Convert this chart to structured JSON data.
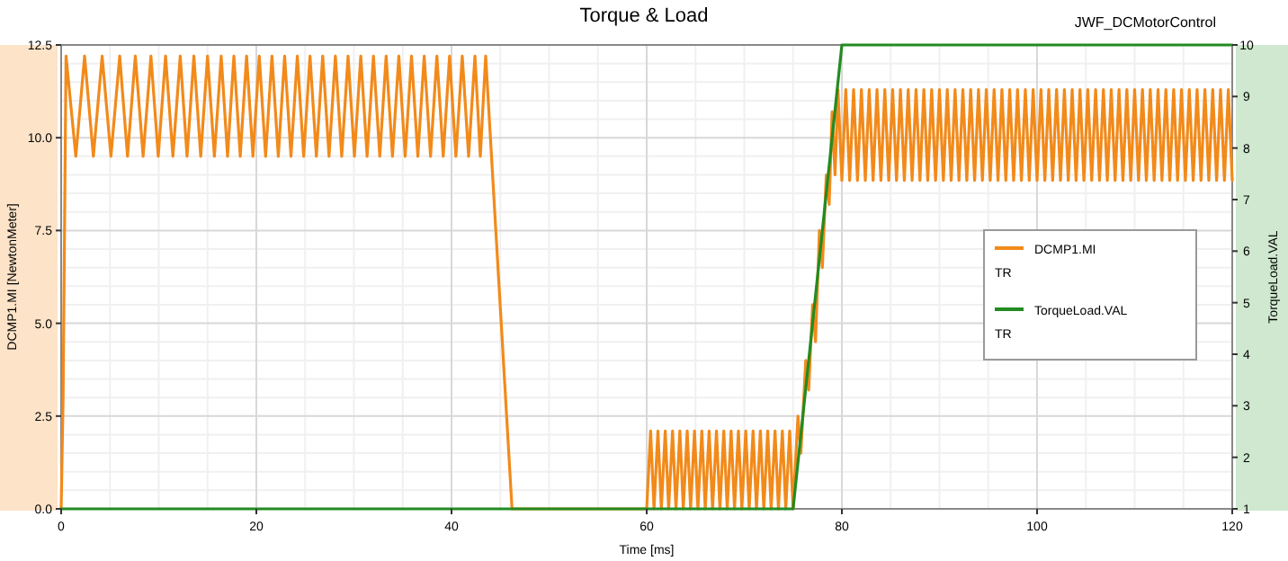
{
  "chart_data": {
    "type": "line",
    "title": "Torque & Load",
    "subtitle": "JWF_DCMotorControl",
    "xlabel": "Time [ms]",
    "ylabel": "DCMP1.MI [NewtonMeter]",
    "y2label": "TorqueLoad.VAL",
    "xlim": [
      0,
      120
    ],
    "xticks": [
      0,
      20,
      40,
      60,
      80,
      100,
      120
    ],
    "ylim": [
      0,
      12.5
    ],
    "yticks": [
      {
        "value": 0,
        "label": "0.0"
      },
      2.5,
      {
        "value": 5,
        "label": "5.0"
      },
      7.5,
      {
        "value": 10,
        "label": "10.0"
      },
      12.5
    ],
    "y2lim": [
      1,
      10
    ],
    "y2ticks": [
      1,
      2,
      3,
      4,
      5,
      6,
      7,
      8,
      9,
      10
    ],
    "grid": true,
    "legend": "right",
    "annotations": [
      "TR",
      "TR"
    ],
    "series": [
      {
        "name": "DCMP1.MI",
        "color": "#f28a1a",
        "x": [
          0,
          0.2,
          0.5,
          1.5,
          2.4,
          3.3,
          4.2,
          5.1,
          6,
          6.8,
          7.6,
          8.4,
          9.2,
          9.95,
          10.7,
          11.45,
          12.2,
          12.9,
          13.6,
          14.3,
          15,
          15.7,
          16.4,
          17.05,
          17.7,
          18.35,
          19,
          19.65,
          20.3,
          20.95,
          21.6,
          22.25,
          22.9,
          23.55,
          24.2,
          24.85,
          25.5,
          26.15,
          26.8,
          27.45,
          28.1,
          28.75,
          29.4,
          30.05,
          30.7,
          31.35,
          32,
          32.65,
          33.3,
          33.95,
          34.6,
          35.25,
          35.9,
          36.55,
          37.2,
          37.85,
          38.5,
          39.15,
          39.8,
          40.45,
          41.1,
          41.75,
          42.4,
          42.95,
          43.5,
          46.2,
          60,
          60.4,
          60.75,
          61.15,
          61.5,
          61.9,
          62.25,
          62.65,
          63,
          63.4,
          63.75,
          64.15,
          64.5,
          64.9,
          65.25,
          65.65,
          66,
          66.4,
          66.75,
          67.15,
          67.5,
          67.9,
          68.25,
          68.65,
          69,
          69.4,
          69.75,
          70.15,
          70.5,
          70.9,
          71.25,
          71.65,
          72,
          72.4,
          72.75,
          73.15,
          73.5,
          73.9,
          74.25,
          74.65,
          75,
          75.5,
          75.8,
          76.3,
          76.6,
          77,
          77.3,
          77.7,
          78,
          78.4,
          78.7,
          79,
          79.3,
          79.6,
          80,
          80.4,
          80.8,
          81.2,
          81.6,
          82,
          82.4,
          82.8,
          83.2,
          83.6,
          84,
          84.4,
          84.8,
          85.2,
          85.6,
          86,
          86.4,
          86.8,
          87.2,
          87.6,
          88,
          88.4,
          88.8,
          89.2,
          89.6,
          90,
          90.4,
          90.8,
          91.2,
          91.6,
          92,
          92.4,
          92.8,
          93.2,
          93.6,
          94,
          94.4,
          94.8,
          95.2,
          95.6,
          96,
          96.4,
          96.8,
          97.2,
          97.6,
          98,
          98.4,
          98.8,
          99.2,
          99.6,
          100,
          100.4,
          100.8,
          101.2,
          101.6,
          102,
          102.4,
          102.8,
          103.2,
          103.6,
          104,
          104.4,
          104.8,
          105.2,
          105.6,
          106,
          106.4,
          106.8,
          107.2,
          107.6,
          108,
          108.4,
          108.8,
          109.2,
          109.6,
          110,
          110.4,
          110.8,
          111.2,
          111.6,
          112,
          112.4,
          112.8,
          113.2,
          113.6,
          114,
          114.4,
          114.8,
          115.2,
          115.6,
          116,
          116.4,
          116.8,
          117.2,
          117.6,
          118,
          118.4,
          118.8,
          119.2,
          119.6,
          120
        ],
        "values": [
          0,
          3,
          12.2,
          9.5,
          12.2,
          9.5,
          12.2,
          9.5,
          12.2,
          9.5,
          12.2,
          9.5,
          12.2,
          9.5,
          12.2,
          9.5,
          12.2,
          9.5,
          12.2,
          9.5,
          12.2,
          9.5,
          12.2,
          9.5,
          12.2,
          9.5,
          12.2,
          9.5,
          12.2,
          9.5,
          12.2,
          9.5,
          12.2,
          9.5,
          12.2,
          9.5,
          12.2,
          9.5,
          12.2,
          9.5,
          12.2,
          9.5,
          12.2,
          9.5,
          12.2,
          9.5,
          12.2,
          9.5,
          12.2,
          9.5,
          12.2,
          9.5,
          12.2,
          9.5,
          12.2,
          9.5,
          12.2,
          9.5,
          12.2,
          9.5,
          12.2,
          9.5,
          12.2,
          9.5,
          12.2,
          0,
          0,
          2.1,
          0,
          2.1,
          0,
          2.1,
          0,
          2.1,
          0,
          2.1,
          0,
          2.1,
          0,
          2.1,
          0,
          2.1,
          0,
          2.1,
          0,
          2.1,
          0,
          2.1,
          0,
          2.1,
          0,
          2.1,
          0,
          2.1,
          0,
          2.1,
          0,
          2.1,
          0,
          2.1,
          0,
          2.1,
          0,
          2.1,
          0,
          2.1,
          0,
          2.5,
          1.5,
          4,
          3.2,
          5.5,
          4.5,
          7.5,
          6.5,
          9,
          8.2,
          10.7,
          9,
          11.3,
          8.85,
          11.3,
          8.85,
          11.3,
          8.85,
          11.3,
          8.85,
          11.3,
          8.85,
          11.3,
          8.85,
          11.3,
          8.85,
          11.3,
          8.85,
          11.3,
          8.85,
          11.3,
          8.85,
          11.3,
          8.85,
          11.3,
          8.85,
          11.3,
          8.85,
          11.3,
          8.85,
          11.3,
          8.85,
          11.3,
          8.85,
          11.3,
          8.85,
          11.3,
          8.85,
          11.3,
          8.85,
          11.3,
          8.85,
          11.3,
          8.85,
          11.3,
          8.85,
          11.3,
          8.85,
          11.3,
          8.85,
          11.3,
          8.85,
          11.3,
          8.85,
          11.3,
          8.85,
          11.3,
          8.85,
          11.3,
          8.85,
          11.3,
          8.85,
          11.3,
          8.85,
          11.3,
          8.85,
          11.3,
          8.85,
          11.3,
          8.85,
          11.3,
          8.85,
          11.3,
          8.85,
          11.3,
          8.85,
          11.3,
          8.85,
          11.3,
          8.85,
          11.3,
          8.85,
          11.3,
          8.85,
          11.3,
          8.85,
          11.3,
          8.85,
          11.3,
          8.85,
          11.3,
          8.85,
          11.3,
          8.85,
          11.3,
          8.85,
          11.3,
          8.85,
          11.3,
          8.85,
          11.3,
          8.85,
          11.3,
          8.85
        ]
      },
      {
        "name": "TorqueLoad.VAL",
        "color": "#228b22",
        "axis": "y2",
        "x": [
          0,
          75,
          80,
          120
        ],
        "values": [
          1,
          1,
          10,
          10
        ]
      }
    ]
  }
}
